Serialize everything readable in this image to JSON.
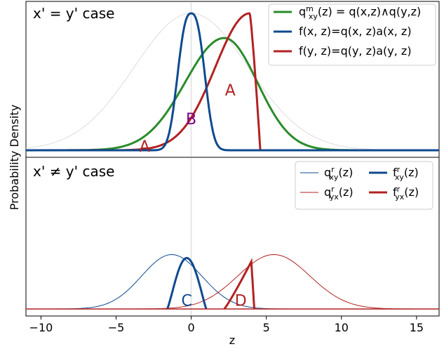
{
  "chart_data": {
    "type": "line",
    "xlabel": "z",
    "ylabel": "Probability Density",
    "xlim": [
      -11,
      16.5
    ],
    "x_ticks": [
      "−10",
      "−5",
      "0",
      "5",
      "10",
      "15"
    ],
    "x_tick_values": [
      -10,
      -5,
      0,
      5,
      10,
      15
    ],
    "panels": [
      {
        "case_label": "x' = y' case",
        "legend_position": "top-right",
        "series": [
          {
            "legend": "qᵐₓᵧ(z) = q(x,z)∧q(y,z)",
            "color": "#2a8c2a",
            "peak_x": 2.2,
            "peak": 0.82,
            "sigma": 3.0
          },
          {
            "legend": "f(x, z)=q(x, z)a(x, z)",
            "color": "#0d4a8f",
            "peak_x": 0.0,
            "peak": 1.0,
            "sigma": 0.85
          },
          {
            "legend": "f(y, z)=q(y, z)a(y, z)",
            "color": "#b22222",
            "start_x": -4.5,
            "end_x": 4.6,
            "peak_x": 3.9,
            "peak": 1.0
          }
        ],
        "background_curve": {
          "color": "#dddddd",
          "center": 0.0,
          "sigma": 3.8,
          "peak": 1.0
        },
        "region_labels": [
          {
            "text": "A",
            "color": "#b22222",
            "x": 2.6,
            "y": 0.44
          },
          {
            "text": "B",
            "color": "#800080",
            "x": 0.0,
            "y": 0.23
          },
          {
            "text": "A",
            "color": "#b22222",
            "x": -3.1,
            "y": 0.03,
            "small": true
          }
        ]
      },
      {
        "case_label": "x' ≠ y' case",
        "legend_position": "top-right",
        "series": [
          {
            "legend": "qʳₓᵧ(z)",
            "color": "#0d4a8f",
            "style": "thin",
            "center": -1.3,
            "sigma": 2.0,
            "peak": 0.62
          },
          {
            "legend": "qʳᵧₓ(z)",
            "color": "#b22222",
            "style": "thin",
            "center": 5.5,
            "sigma": 2.4,
            "peak": 0.62
          },
          {
            "legend": "fʳₓᵧ(z)",
            "color": "#0d4a8f",
            "style": "thick",
            "start_x": -1.6,
            "end_x": 1.0,
            "peak_x": -0.3,
            "peak": 0.58
          },
          {
            "legend": "fʳᵧₓ(z)",
            "color": "#b22222",
            "style": "thick",
            "start_x": 2.2,
            "end_x": 4.2,
            "peak_x": 4.0,
            "peak": 0.54
          }
        ],
        "region_labels": [
          {
            "text": "C",
            "color": "#0d4a8f",
            "x": -0.3,
            "y": 0.1
          },
          {
            "text": "D",
            "color": "#b22222",
            "x": 3.3,
            "y": 0.1
          }
        ]
      }
    ]
  },
  "legend_top": {
    "entries": [
      {
        "main": "q",
        "sup": "m",
        "sub": "xy",
        "rest": "(z) = q(x,z)∧q(y,z)",
        "color": "#2a8c2a"
      },
      {
        "main": "f(x, z)=q(x, z)a(x, z)",
        "color": "#0d4a8f"
      },
      {
        "main": "f(y, z)=q(y, z)a(y, z)",
        "color": "#b22222"
      }
    ]
  },
  "legend_bottom": {
    "entries": [
      {
        "main": "q",
        "sup": "r",
        "sub": "xy",
        "rest": "(z)",
        "color": "#0d4a8f",
        "thin": true
      },
      {
        "main": "f",
        "sup": "r",
        "sub": "xy",
        "rest": "(z)",
        "color": "#0d4a8f",
        "thin": false
      },
      {
        "main": "q",
        "sup": "r",
        "sub": "yx",
        "rest": "(z)",
        "color": "#b22222",
        "thin": true
      },
      {
        "main": "f",
        "sup": "r",
        "sub": "yx",
        "rest": "(z)",
        "color": "#b22222",
        "thin": false
      }
    ]
  }
}
